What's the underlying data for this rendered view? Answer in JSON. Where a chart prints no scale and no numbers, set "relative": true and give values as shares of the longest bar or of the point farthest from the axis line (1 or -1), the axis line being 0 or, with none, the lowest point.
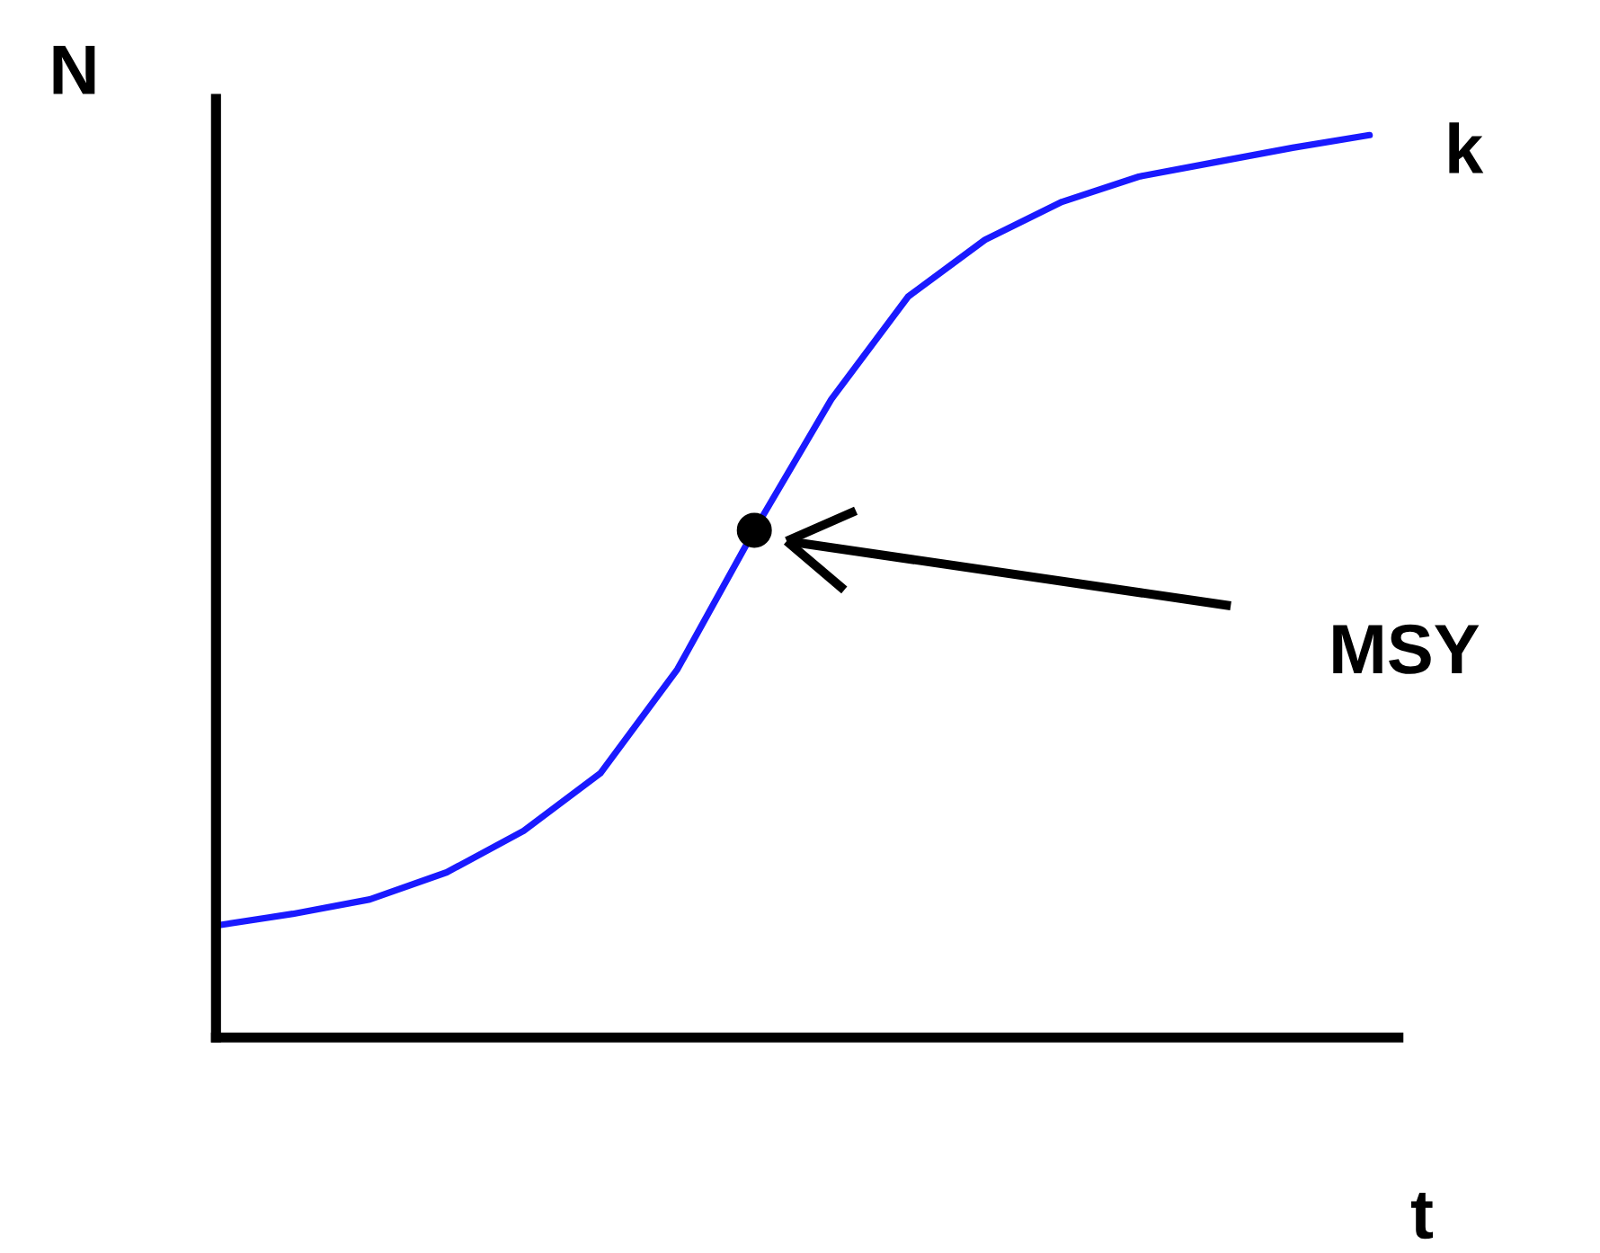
{
  "chart_data": {
    "type": "line",
    "xlabel": "t",
    "ylabel": "N",
    "relative": true,
    "categories": [
      null,
      null,
      null,
      null,
      null,
      null,
      null,
      null,
      null,
      null,
      null,
      null,
      null,
      null,
      null,
      null
    ],
    "series": [
      {
        "color": "#1a1aff",
        "values": [
          0.124,
          0.137,
          0.153,
          0.183,
          0.229,
          0.293,
          0.408,
          0.562,
          0.707,
          0.821,
          0.884,
          0.926,
          0.954,
          0.97,
          0.986,
          1
        ]
      }
    ],
    "annotations": [
      "k",
      "MSY"
    ]
  }
}
